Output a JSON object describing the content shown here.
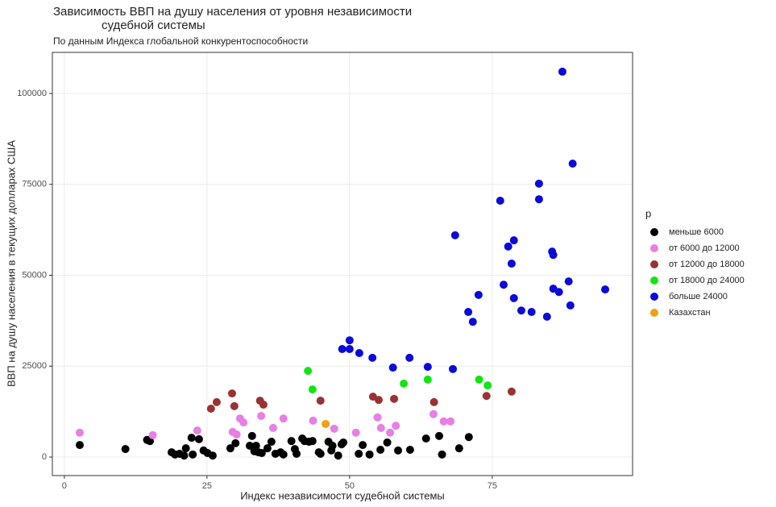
{
  "chart_data": {
    "type": "scatter",
    "title": [
      "Зависимость ВВП на душу населения от уровня независимости",
      "судебной системы"
    ],
    "subtitle": "По данным Индекса глобальной конкурентоспособности",
    "x_label": "Индекс независимости судебной системы",
    "y_label": "ВВП на душу населения в текущих долларах США",
    "legend_title": "p",
    "xlim": [
      -2.1,
      99.6
    ],
    "ylim": [
      -5100,
      111300
    ],
    "xticks": [
      0,
      25,
      50,
      75
    ],
    "yticks": [
      0,
      25000,
      50000,
      75000,
      100000
    ],
    "grid": true,
    "series": [
      {
        "name": "меньше 6000",
        "color": "#000000",
        "x": [
          2.7,
          10.7,
          14.5,
          15.0,
          18.8,
          19.4,
          20.2,
          21.0,
          21.3,
          22.5,
          22.3,
          23.6,
          24.4,
          25.1,
          26.0,
          29.1,
          30.0,
          32.9,
          32.5,
          33.3,
          33.6,
          34.0,
          34.6,
          35.6,
          36.3,
          37.0,
          37.9,
          38.4,
          39.8,
          40.4,
          40.7,
          41.7,
          42.1,
          42.9,
          43.5,
          44.6,
          44.9,
          46.3,
          46.8,
          47.0,
          48.0,
          48.6,
          48.9,
          51.6,
          52.3,
          53.5,
          55.4,
          56.6,
          58.5,
          60.6,
          63.4,
          65.7,
          66.2,
          69.2,
          70.9
        ],
        "values": [
          3300,
          2200,
          4700,
          4400,
          1300,
          700,
          900,
          400,
          2400,
          700,
          5300,
          4900,
          1800,
          1100,
          400,
          2400,
          3800,
          5800,
          3100,
          1600,
          3100,
          1300,
          1100,
          2400,
          4200,
          900,
          1300,
          700,
          4400,
          2200,
          900,
          5100,
          4400,
          4200,
          4400,
          1300,
          900,
          4200,
          1800,
          3100,
          400,
          3500,
          4000,
          900,
          3300,
          700,
          2000,
          4000,
          1800,
          2000,
          5100,
          5800,
          700,
          2400,
          5500
        ]
      },
      {
        "name": "от 6000 до 12000",
        "color": "#e67fe6",
        "x": [
          2.7,
          15.5,
          23.3,
          29.5,
          30.2,
          30.8,
          31.4,
          34.5,
          36.6,
          38.4,
          43.6,
          47.3,
          51.1,
          54.9,
          55.5,
          57.1,
          58.1,
          64.7,
          66.5,
          67.7
        ],
        "values": [
          6700,
          6000,
          7300,
          6900,
          6200,
          10600,
          9500,
          11300,
          8000,
          10600,
          10000,
          7800,
          6700,
          10900,
          8000,
          6700,
          8600,
          11800,
          9800,
          9800
        ]
      },
      {
        "name": "от 12000 до 18000",
        "color": "#993333",
        "x": [
          25.7,
          26.7,
          29.4,
          29.8,
          34.3,
          34.9,
          44.9,
          54.1,
          55.1,
          57.8,
          64.8,
          74.0,
          78.4
        ],
        "values": [
          13300,
          15100,
          17500,
          14000,
          15500,
          14400,
          15500,
          16600,
          15700,
          16000,
          15100,
          16800,
          18000
        ]
      },
      {
        "name": "от 18000 до 24000",
        "color": "#11e611",
        "x": [
          42.7,
          43.5,
          59.5,
          63.7,
          72.7,
          74.2
        ],
        "values": [
          23700,
          18600,
          20200,
          21300,
          21300,
          19700
        ]
      },
      {
        "name": "больше 24000",
        "color": "#0a0ad9",
        "x": [
          48.7,
          50.0,
          50.0,
          51.7,
          54.0,
          57.6,
          60.5,
          63.7,
          68.1,
          68.5,
          70.8,
          71.6,
          72.6,
          76.4,
          77.0,
          77.8,
          78.4,
          78.8,
          78.8,
          80.1,
          81.9,
          83.2,
          83.2,
          84.6,
          85.5,
          85.7,
          85.7,
          86.7,
          87.3,
          88.4,
          88.7,
          89.1,
          94.8
        ],
        "values": [
          29700,
          32100,
          29700,
          28600,
          27300,
          24600,
          27300,
          24800,
          24200,
          61000,
          39900,
          37200,
          44600,
          70500,
          47400,
          57900,
          53200,
          59600,
          43700,
          40300,
          39900,
          75200,
          70900,
          38600,
          56500,
          55600,
          46300,
          45400,
          106000,
          48300,
          41700,
          80700,
          46100
        ]
      },
      {
        "name": "Казахстан",
        "color": "#f0a010",
        "x": [
          45.8
        ],
        "values": [
          9100
        ]
      }
    ]
  }
}
